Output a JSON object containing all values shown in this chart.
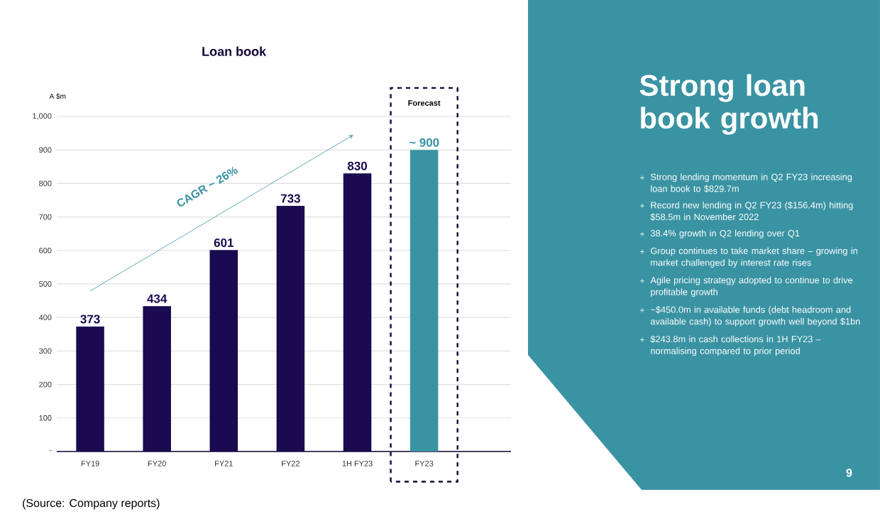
{
  "chart_data": [
    {
      "type": "bar",
      "title": "Loan book",
      "ylabel": "A $m",
      "categories": [
        "FY19",
        "FY20",
        "FY21",
        "FY22",
        "1H FY23",
        "FY23"
      ],
      "values": [
        373,
        434,
        601,
        733,
        830,
        900
      ],
      "colors": [
        "#1a0a4f",
        "#1a0a4f",
        "#1a0a4f",
        "#1a0a4f",
        "#1a0a4f",
        "#3a93a3"
      ],
      "value_labels": [
        "373",
        "434",
        "601",
        "733",
        "830",
        "~ 900"
      ],
      "ylim": [
        0,
        1000
      ],
      "yticks": [
        {
          "value": 0,
          "label": "-"
        },
        100,
        200,
        300,
        400,
        500,
        600,
        700,
        800,
        900,
        {
          "value": 1000,
          "label": "1,000"
        }
      ],
      "grid": "y",
      "annotations": [
        "CAGR ~ 26%",
        "Forecast",
        "(Source: Company reports)"
      ]
    },
    {
      "type": "other",
      "title": "Strong loan book growth",
      "annotations": [
        "Strong lending momentum in Q2 FY23 increasing loan book to $829.7m",
        "Record new lending in Q2 FY23 ($156.4m) hitting $58.5m in November 2022",
        "38.4% growth in Q2 lending over Q1",
        "Group continues to take market share – growing in market challenged by interest rate rises",
        "Agile pricing strategy adopted to continue to drive profitable growth",
        "~$450.0m in available funds (debt headroom and available cash) to support growth well beyond $1bn",
        "$243.8m in cash collections in 1H FY23 – normalising compared to prior period",
        "9"
      ]
    }
  ]
}
